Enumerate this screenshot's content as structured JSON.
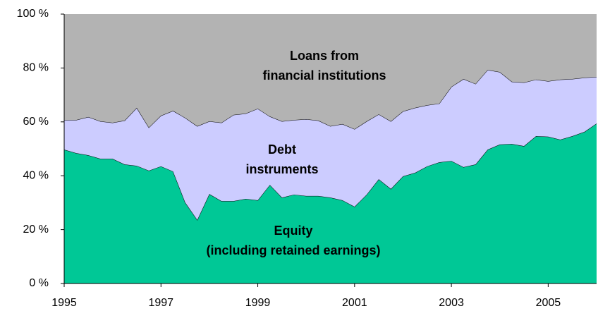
{
  "chart_data": {
    "type": "stacked-area",
    "x": [
      1995,
      1995.25,
      1995.5,
      1995.75,
      1996,
      1996.25,
      1996.5,
      1996.75,
      1997,
      1997.25,
      1997.5,
      1997.75,
      1998,
      1998.25,
      1998.5,
      1998.75,
      1999,
      1999.25,
      1999.5,
      1999.75,
      2000,
      2000.25,
      2000.5,
      2000.75,
      2001,
      2001.25,
      2001.5,
      2001.75,
      2002,
      2002.25,
      2002.5,
      2002.75,
      2003,
      2003.25,
      2003.5,
      2003.75,
      2004,
      2004.25,
      2004.5,
      2004.75,
      2005,
      2005.25,
      2005.5,
      2005.75,
      2006
    ],
    "series": [
      {
        "name": [
          "Equity",
          "(including retained earnings)"
        ],
        "color": "#00c896",
        "values": [
          49.7,
          48.4,
          47.6,
          46.3,
          46.3,
          44.2,
          43.7,
          41.9,
          43.5,
          41.6,
          30.1,
          23.6,
          33.2,
          30.6,
          30.6,
          31.4,
          30.9,
          36.6,
          31.9,
          33,
          32.5,
          32.5,
          31.9,
          30.9,
          28.5,
          33,
          38.7,
          35.1,
          39.8,
          41.1,
          43.5,
          45,
          45.5,
          43.2,
          44.2,
          49.7,
          51.6,
          51.8,
          51,
          54.7,
          54.5,
          53.4,
          54.7,
          56.3,
          59.4
        ]
      },
      {
        "name": [
          "Debt",
          "instruments"
        ],
        "color": "#ccccff",
        "values": [
          11.0,
          12.3,
          14.2,
          13.9,
          13.4,
          16.3,
          21.5,
          16.0,
          18.8,
          22.5,
          31.4,
          34.8,
          27.0,
          29.1,
          32.0,
          31.7,
          34.0,
          25.4,
          28.3,
          27.7,
          28.5,
          28.0,
          26.5,
          28.3,
          28.8,
          27.2,
          24.1,
          25.1,
          24.1,
          24.1,
          22.7,
          21.8,
          27.5,
          32.7,
          29.9,
          29.6,
          26.9,
          23.1,
          23.6,
          21.0,
          20.6,
          22.3,
          21.2,
          20.1,
          17.3
        ]
      },
      {
        "name": [
          "Loans from",
          "financial institutions"
        ],
        "color": "#b3b3b3",
        "values": [
          39.3,
          39.3,
          38.2,
          39.8,
          40.3,
          39.5,
          34.8,
          42.1,
          37.7,
          35.9,
          38.5,
          41.6,
          39.8,
          40.3,
          37.4,
          36.9,
          35.1,
          38,
          39.8,
          39.3,
          39,
          39.5,
          41.6,
          40.8,
          42.7,
          39.8,
          37.2,
          39.8,
          36.1,
          34.8,
          33.8,
          33.2,
          27,
          24.1,
          25.9,
          20.7,
          21.5,
          25.1,
          25.4,
          24.3,
          24.9,
          24.3,
          24.1,
          23.6,
          23.3
        ]
      }
    ],
    "xlim": [
      1995,
      2006
    ],
    "xticks": [
      1995,
      1997,
      1999,
      2001,
      2003,
      2005
    ],
    "ylim": [
      0,
      100
    ],
    "yticks": [
      {
        "value": 0,
        "label": "0 %"
      },
      {
        "value": 20,
        "label": "20 %"
      },
      {
        "value": 40,
        "label": "40 %"
      },
      {
        "value": 60,
        "label": "60 %"
      },
      {
        "value": 80,
        "label": "80 %"
      },
      {
        "value": 100,
        "label": "100 %"
      }
    ]
  }
}
